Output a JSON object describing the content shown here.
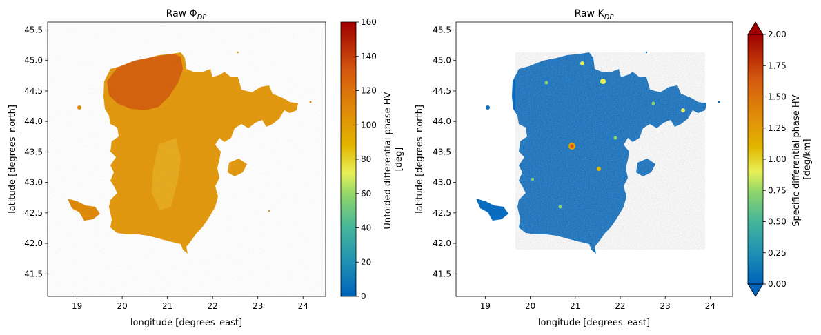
{
  "chart_data": [
    {
      "type": "heatmap",
      "title": "Raw Φ",
      "title_subscript": "DP",
      "xlabel": "longitude [degrees_east]",
      "ylabel": "latitude [degrees_north]",
      "xlim": [
        18.35,
        24.5
      ],
      "ylim": [
        41.13,
        45.63
      ],
      "xticks": [
        "19",
        "20",
        "21",
        "22",
        "23",
        "24"
      ],
      "yticks": [
        "41.5",
        "42.0",
        "42.5",
        "43.0",
        "43.5",
        "44.0",
        "44.5",
        "45.0",
        "45.5"
      ],
      "colorbar": {
        "label_line1": "Unfolded differential phase HV",
        "label_line2": "[deg]",
        "range": [
          0,
          160
        ],
        "ticks": [
          "0",
          "20",
          "40",
          "60",
          "80",
          "100",
          "120",
          "140",
          "160"
        ],
        "extend": "neither"
      },
      "colormap": [
        "#0062b8",
        "#1e8fb5",
        "#45b59a",
        "#8fd66a",
        "#e8f058",
        "#e2b500",
        "#e08a0a",
        "#d45a0f",
        "#b51c08",
        "#9e0000"
      ],
      "field_typical_value": "about 90-130 deg, highest (~130-150) in the north-west"
    },
    {
      "type": "heatmap",
      "title": "Raw K",
      "title_subscript": "DP",
      "xlabel": "longitude [degrees_east]",
      "ylabel": "latitude [degrees_north]",
      "xlim": [
        18.35,
        24.5
      ],
      "ylim": [
        41.13,
        45.63
      ],
      "xticks": [
        "19",
        "20",
        "21",
        "22",
        "23",
        "24"
      ],
      "yticks": [
        "41.5",
        "42.0",
        "42.5",
        "43.0",
        "43.5",
        "44.0",
        "44.5",
        "45.0",
        "45.5"
      ],
      "colorbar": {
        "label_line1": "Specific differential phase HV",
        "label_line2": "[deg/km]",
        "range": [
          0,
          2
        ],
        "ticks": [
          "0.00",
          "0.25",
          "0.50",
          "0.75",
          "1.00",
          "1.25",
          "1.50",
          "1.75",
          "2.00"
        ],
        "extend": "both"
      },
      "colormap": [
        "#0062b8",
        "#1e8fb5",
        "#45b59a",
        "#8fd66a",
        "#e8f058",
        "#e2b500",
        "#e08a0a",
        "#d45a0f",
        "#b51c08",
        "#9e0000"
      ],
      "field_typical_value": "mostly 0-0.3 deg/km with scattered 0.5-1.3 cells"
    }
  ]
}
